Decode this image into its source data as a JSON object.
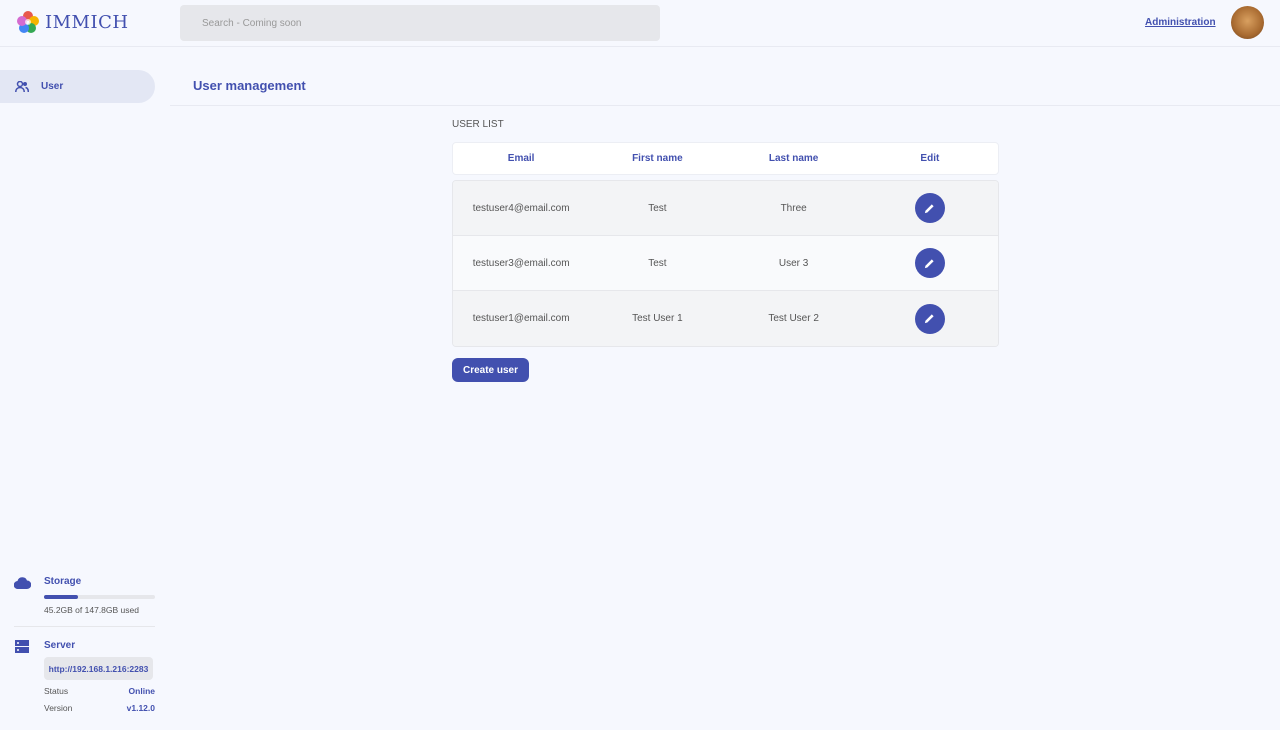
{
  "header": {
    "app_name": "IMMICH",
    "search_placeholder": "Search - Coming soon",
    "admin_link": "Administration"
  },
  "sidebar": {
    "items": [
      {
        "label": "User",
        "icon": "users-icon"
      }
    ]
  },
  "main": {
    "title": "User management",
    "section_label": "USER LIST",
    "columns": [
      "Email",
      "First name",
      "Last name",
      "Edit"
    ],
    "rows": [
      {
        "email": "testuser4@email.com",
        "first": "Test",
        "last": "Three"
      },
      {
        "email": "testuser3@email.com",
        "first": "Test",
        "last": "User 3"
      },
      {
        "email": "testuser1@email.com",
        "first": "Test User 1",
        "last": "Test User 2"
      }
    ],
    "create_button": "Create user"
  },
  "storage": {
    "title": "Storage",
    "used_text": "45.2GB of 147.8GB used",
    "used_fraction": 0.306
  },
  "server": {
    "title": "Server",
    "url": "http://192.168.1.216:2283",
    "status_label": "Status",
    "status": "Online",
    "version_label": "Version",
    "version": "v1.12.0"
  },
  "colors": {
    "primary": "#4250af",
    "background": "#f6f8fe"
  }
}
